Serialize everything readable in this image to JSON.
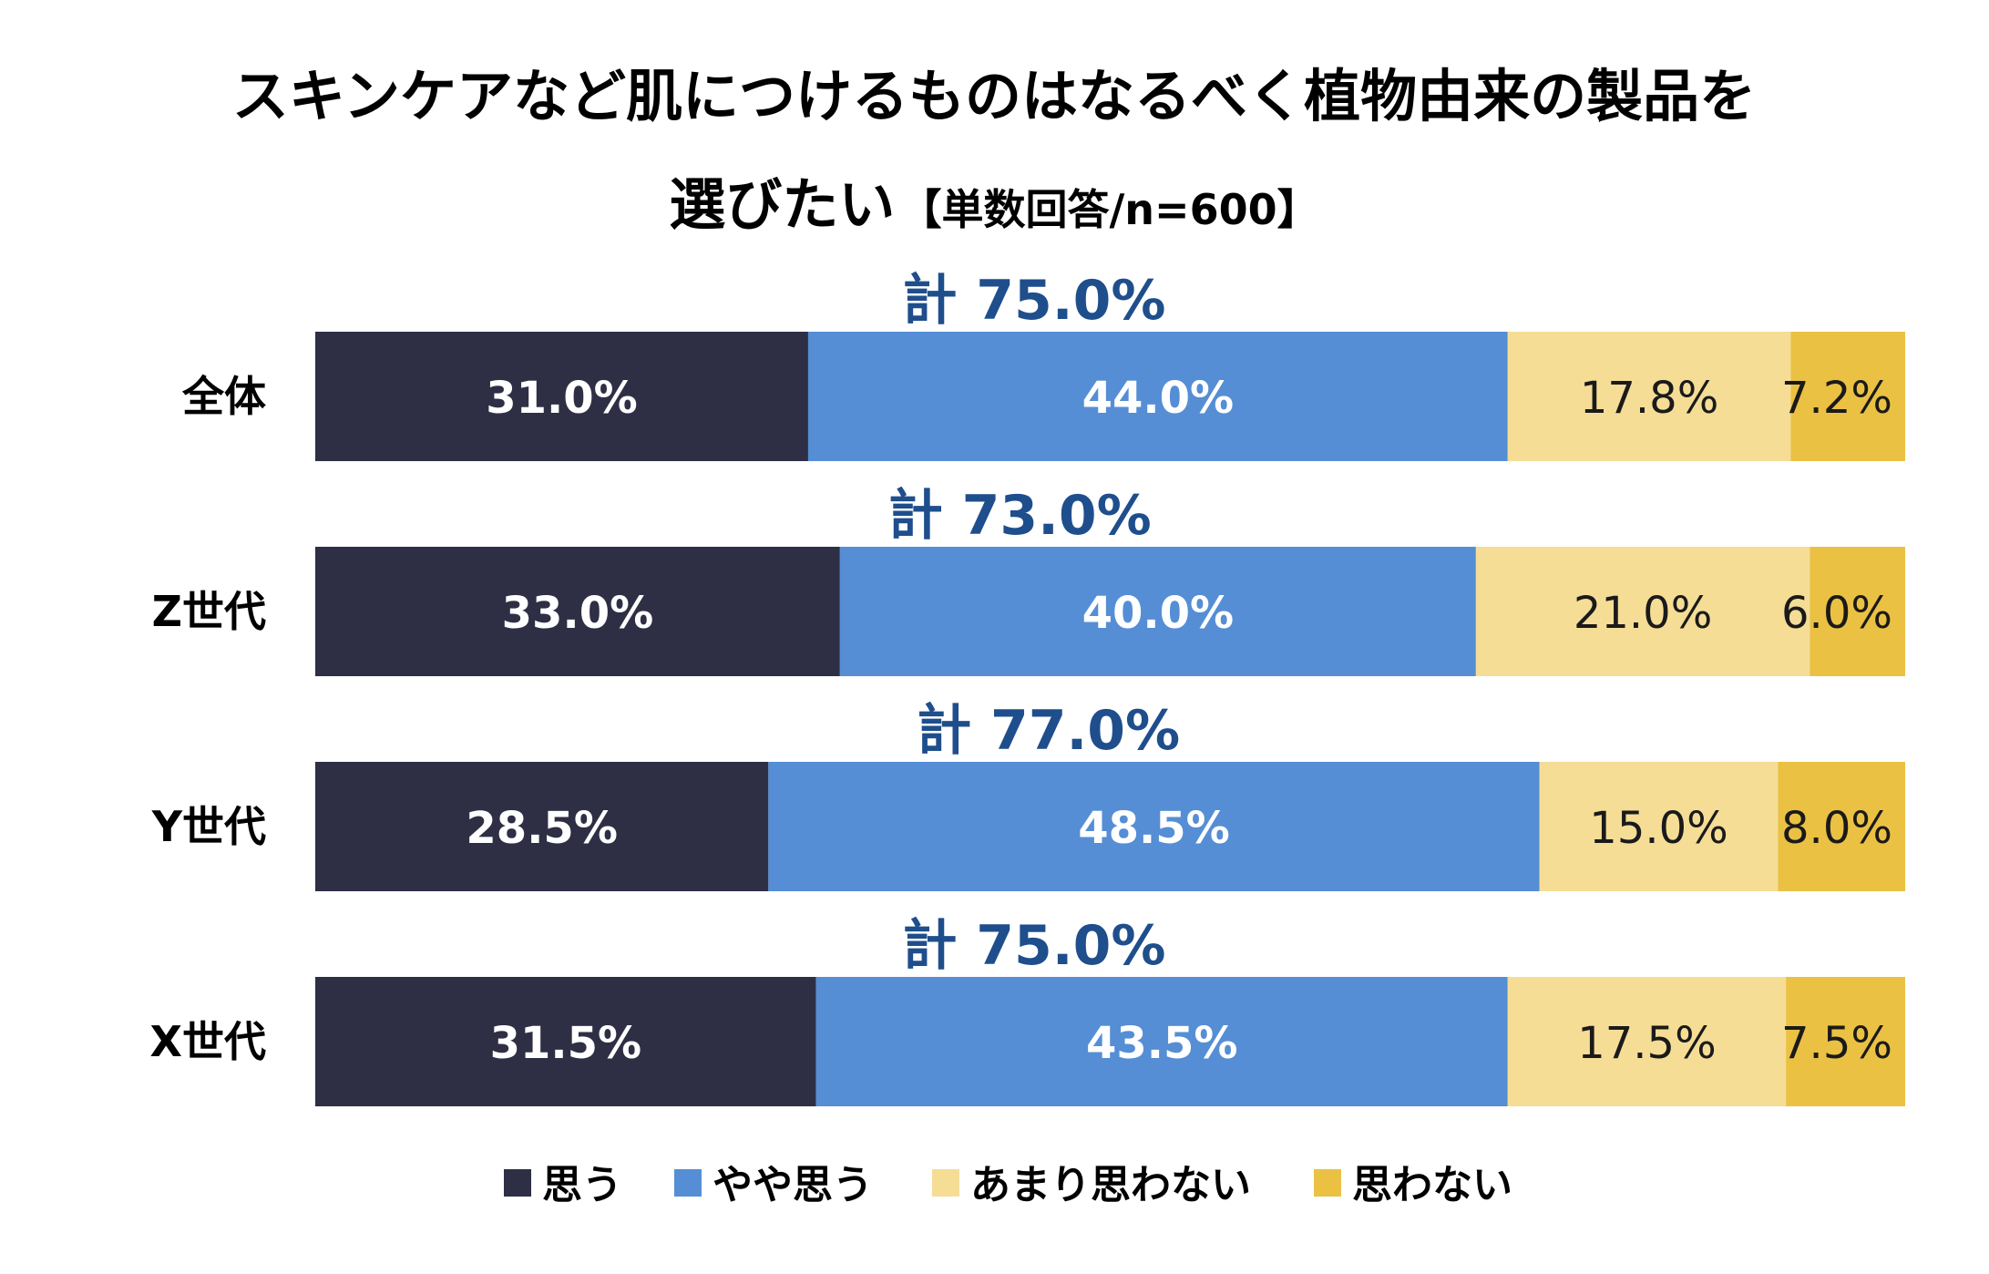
{
  "chart_data": {
    "type": "bar",
    "orientation": "horizontal-stacked-100",
    "title": "スキンケアなど肌につけるものはなるべく植物由来の製品を",
    "title_line2": "選びたい",
    "title_note": "【単数回答/n=600】",
    "categories": [
      "全体",
      "Z世代",
      "Y世代",
      "X世代"
    ],
    "series": [
      {
        "name": "思う",
        "color": "#2e2f45",
        "values": [
          31.0,
          33.0,
          28.5,
          31.5
        ],
        "labels": [
          "31.0%",
          "33.0%",
          "28.5%",
          "31.5%"
        ]
      },
      {
        "name": "やや思う",
        "color": "#558ed5",
        "values": [
          44.0,
          40.0,
          48.5,
          43.5
        ],
        "labels": [
          "44.0%",
          "40.0%",
          "48.5%",
          "43.5%"
        ]
      },
      {
        "name": "あまり思わない",
        "color": "#f5dd96",
        "values": [
          17.8,
          21.0,
          15.0,
          17.5
        ],
        "labels": [
          "17.8%",
          "21.0%",
          "15.0%",
          "17.5%"
        ]
      },
      {
        "name": "思わない",
        "color": "#ebc143",
        "values": [
          7.2,
          6.0,
          8.0,
          7.5
        ],
        "labels": [
          "7.2%",
          "6.0%",
          "8.0%",
          "7.5%"
        ]
      }
    ],
    "totals": [
      "計 75.0%",
      "計 73.0%",
      "計 77.0%",
      "計 75.0%"
    ],
    "xlim": [
      0,
      100
    ],
    "grid": false,
    "legend_placement": "bottom"
  }
}
